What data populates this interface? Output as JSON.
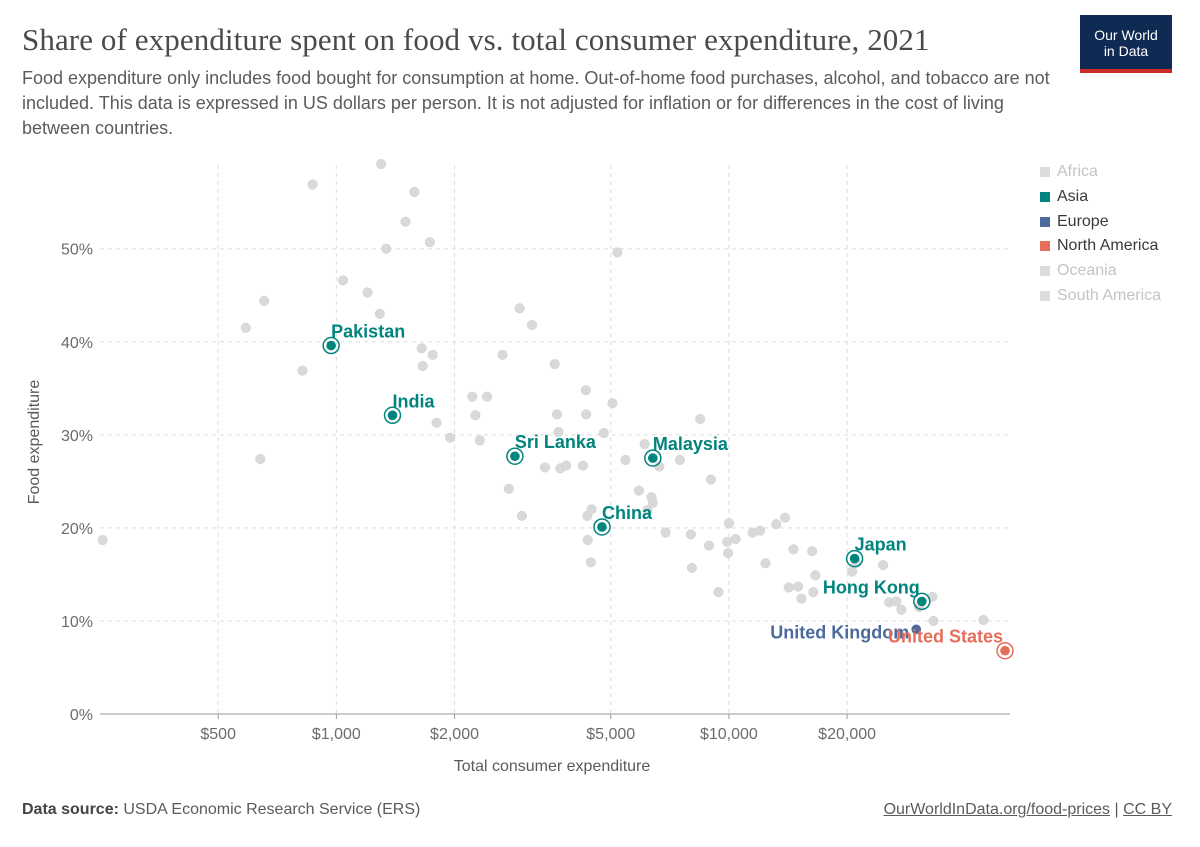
{
  "header": {
    "title": "Share of expenditure spent on food vs. total consumer expenditure, 2021",
    "subtitle": "Food expenditure only includes food bought for consumption at home. Out-of-home food purchases, alcohol, and tobacco are not included. This data is expressed in US dollars per person. It is not adjusted for inflation or for differences in the cost of living between countries.",
    "logo_line1": "Our World",
    "logo_line2": "in Data"
  },
  "legend": [
    {
      "label": "Africa",
      "color": "#cccccc",
      "dimmed": true
    },
    {
      "label": "Asia",
      "color": "#00847e",
      "dimmed": false
    },
    {
      "label": "Europe",
      "color": "#4c6a9c",
      "dimmed": false
    },
    {
      "label": "North America",
      "color": "#e56e5a",
      "dimmed": false
    },
    {
      "label": "Oceania",
      "color": "#cccccc",
      "dimmed": true
    },
    {
      "label": "South America",
      "color": "#cccccc",
      "dimmed": true
    }
  ],
  "footer": {
    "source_label": "Data source:",
    "source_text": "USDA Economic Research Service (ERS)",
    "link_text": "OurWorldInData.org/food-prices",
    "separator": "|",
    "license": "CC BY"
  },
  "chart_data": {
    "type": "scatter",
    "title": "Share of expenditure spent on food vs. total consumer expenditure, 2021",
    "xlabel": "Total consumer expenditure",
    "ylabel": "Food expenditure",
    "x_scale": "log",
    "xlim": [
      250,
      52000
    ],
    "ylim": [
      0,
      59
    ],
    "x_ticks": [
      {
        "value": 500,
        "label": "$500"
      },
      {
        "value": 1000,
        "label": "$1,000"
      },
      {
        "value": 2000,
        "label": "$2,000"
      },
      {
        "value": 5000,
        "label": "$5,000"
      },
      {
        "value": 10000,
        "label": "$10,000"
      },
      {
        "value": 20000,
        "label": "$20,000"
      }
    ],
    "y_ticks": [
      {
        "value": 0,
        "label": "0%"
      },
      {
        "value": 10,
        "label": "10%"
      },
      {
        "value": 20,
        "label": "20%"
      },
      {
        "value": 30,
        "label": "30%"
      },
      {
        "value": 40,
        "label": "40%"
      },
      {
        "value": 50,
        "label": "50%"
      }
    ],
    "highlighted": [
      {
        "country": "Pakistan",
        "region": "Asia",
        "x": 970,
        "y": 39.6
      },
      {
        "country": "India",
        "region": "Asia",
        "x": 1390,
        "y": 32.1
      },
      {
        "country": "Sri Lanka",
        "region": "Asia",
        "x": 2850,
        "y": 27.7
      },
      {
        "country": "Malaysia",
        "region": "Asia",
        "x": 6400,
        "y": 27.5
      },
      {
        "country": "China",
        "region": "Asia",
        "x": 4750,
        "y": 20.1
      },
      {
        "country": "Japan",
        "region": "Asia",
        "x": 20900,
        "y": 16.7
      },
      {
        "country": "Hong Kong",
        "region": "Asia",
        "x": 31000,
        "y": 12.1
      },
      {
        "country": "United Kingdom",
        "region": "Europe",
        "x": 30000,
        "y": 9.1
      },
      {
        "country": "United States",
        "region": "North America",
        "x": 50500,
        "y": 6.8
      }
    ],
    "others": [
      [
        254,
        18.7
      ],
      [
        588,
        41.5
      ],
      [
        655,
        44.4
      ],
      [
        640,
        27.4
      ],
      [
        820,
        36.9
      ],
      [
        870,
        56.9
      ],
      [
        1040,
        46.6
      ],
      [
        1300,
        59.1
      ],
      [
        1340,
        50.0
      ],
      [
        1200,
        45.3
      ],
      [
        1290,
        43.0
      ],
      [
        1500,
        52.9
      ],
      [
        1580,
        56.1
      ],
      [
        1650,
        39.3
      ],
      [
        1660,
        37.4
      ],
      [
        1730,
        50.7
      ],
      [
        1760,
        38.6
      ],
      [
        1800,
        31.3
      ],
      [
        1950,
        29.7
      ],
      [
        2220,
        34.1
      ],
      [
        2260,
        32.1
      ],
      [
        2320,
        29.4
      ],
      [
        2420,
        34.1
      ],
      [
        2650,
        38.6
      ],
      [
        2750,
        24.2
      ],
      [
        2930,
        43.6
      ],
      [
        2970,
        21.3
      ],
      [
        3150,
        41.8
      ],
      [
        3400,
        26.5
      ],
      [
        3600,
        37.6
      ],
      [
        3650,
        32.2
      ],
      [
        3680,
        30.3
      ],
      [
        3720,
        26.4
      ],
      [
        3850,
        26.7
      ],
      [
        4250,
        26.7
      ],
      [
        4320,
        34.8
      ],
      [
        4330,
        32.2
      ],
      [
        4360,
        21.3
      ],
      [
        4370,
        18.7
      ],
      [
        4450,
        16.3
      ],
      [
        4470,
        22.0
      ],
      [
        4800,
        30.2
      ],
      [
        5050,
        33.4
      ],
      [
        5200,
        49.6
      ],
      [
        5450,
        27.3
      ],
      [
        5900,
        24.0
      ],
      [
        6100,
        29.0
      ],
      [
        6200,
        21.9
      ],
      [
        6350,
        23.3
      ],
      [
        6400,
        22.7
      ],
      [
        6650,
        26.6
      ],
      [
        6900,
        19.5
      ],
      [
        7500,
        27.3
      ],
      [
        8000,
        19.3
      ],
      [
        8050,
        15.7
      ],
      [
        8450,
        31.7
      ],
      [
        8900,
        18.1
      ],
      [
        9000,
        25.2
      ],
      [
        9400,
        13.1
      ],
      [
        9900,
        18.5
      ],
      [
        9950,
        17.3
      ],
      [
        10000,
        20.5
      ],
      [
        10400,
        18.8
      ],
      [
        11500,
        19.5
      ],
      [
        12000,
        19.7
      ],
      [
        12400,
        16.2
      ],
      [
        13200,
        20.4
      ],
      [
        13900,
        21.1
      ],
      [
        14200,
        13.6
      ],
      [
        14600,
        17.7
      ],
      [
        15000,
        13.7
      ],
      [
        15300,
        12.4
      ],
      [
        16300,
        17.5
      ],
      [
        16400,
        13.1
      ],
      [
        16600,
        14.9
      ],
      [
        20600,
        15.3
      ],
      [
        21100,
        16.2
      ],
      [
        24700,
        16.0
      ],
      [
        25600,
        12.0
      ],
      [
        26700,
        12.1
      ],
      [
        27500,
        11.2
      ],
      [
        30500,
        11.5
      ],
      [
        33000,
        12.6
      ],
      [
        33200,
        10.0
      ],
      [
        44500,
        10.1
      ]
    ]
  }
}
